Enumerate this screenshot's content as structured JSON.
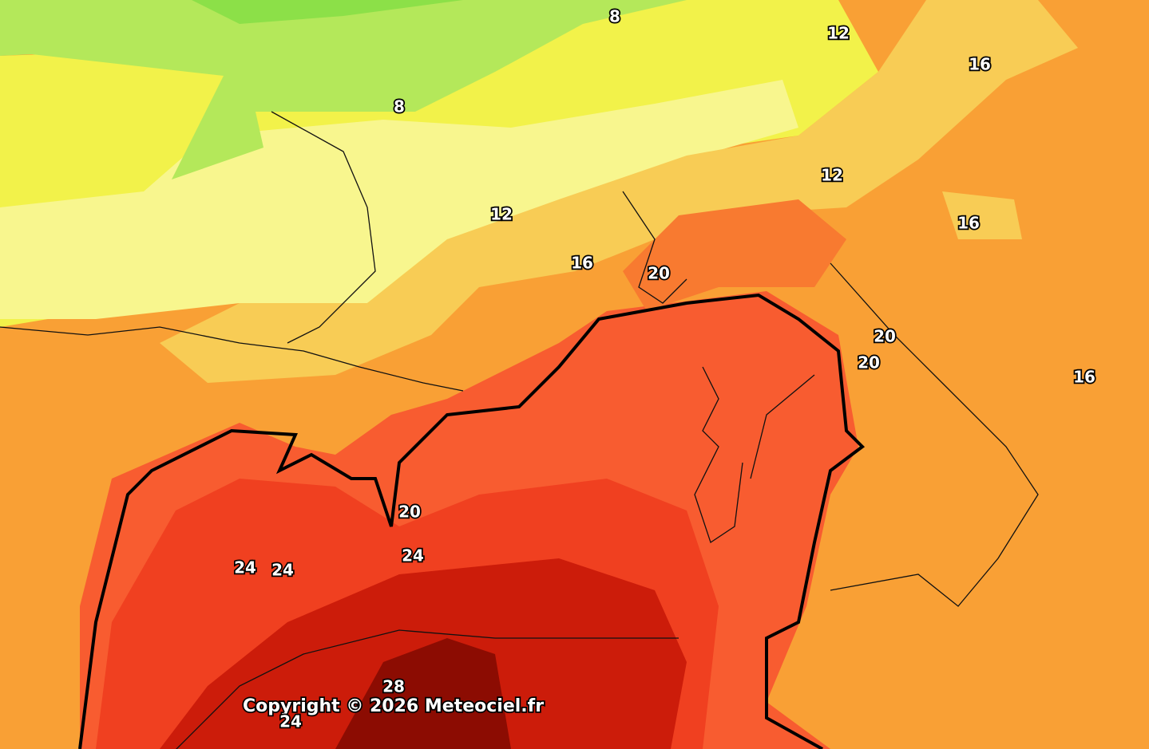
{
  "contour_labels": [
    "8",
    "12",
    "16",
    "8",
    "12",
    "12",
    "16",
    "16",
    "20",
    "20",
    "20",
    "16",
    "20",
    "24",
    "24",
    "24",
    "28",
    "24"
  ],
  "copyright": "Copyright © 2026 Meteociel.fr"
}
